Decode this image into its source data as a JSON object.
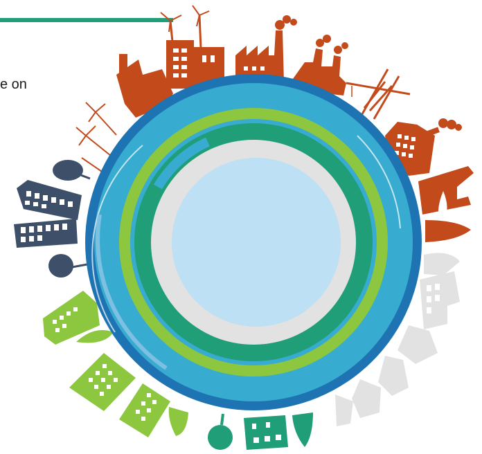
{
  "slide": {
    "text_fragment": "e on"
  },
  "colors": {
    "accent_line": "#1f9e77",
    "industry": "#c34a1b",
    "urban": "#3d4f69",
    "green": "#8dc63f",
    "teal": "#1f9e77",
    "faded": "#e2e2e2",
    "ring_outer": "#1e73b3",
    "ring_mid": "#37abd0",
    "core": "#bde0f4"
  },
  "illustration": {
    "subject": "globe-with-surrounding-city-silhouettes",
    "icons": [
      "wind-turbine-icon",
      "factory-icon",
      "crane-icon",
      "ship-icon",
      "tree-icon",
      "building-icon",
      "house-icon"
    ]
  }
}
